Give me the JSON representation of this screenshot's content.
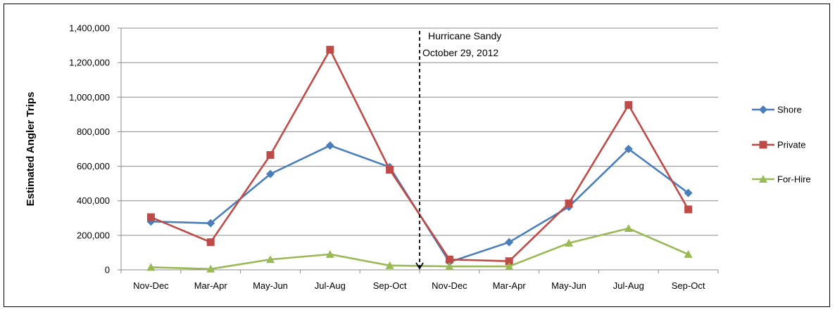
{
  "chart_data": {
    "type": "line",
    "title": "",
    "xlabel": "",
    "ylabel": "Estimated Angler Trips",
    "categories": [
      "Nov-Dec",
      "Mar-Apr",
      "May-Jun",
      "Jul-Aug",
      "Sep-Oct",
      "Nov-Dec",
      "Mar-Apr",
      "May-Jun",
      "Jul-Aug",
      "Sep-Oct"
    ],
    "ylim": [
      0,
      1400000
    ],
    "yticks": [
      0,
      200000,
      400000,
      600000,
      800000,
      1000000,
      1200000,
      1400000
    ],
    "ytick_labels": [
      "0",
      "200,000",
      "400,000",
      "600,000",
      "800,000",
      "1,000,000",
      "1,200,000",
      "1,400,000"
    ],
    "grid": true,
    "legend_position": "right",
    "series": [
      {
        "name": "Shore",
        "color": "#4a7ebb",
        "marker": "diamond",
        "values": [
          280000,
          270000,
          555000,
          720000,
          595000,
          45000,
          160000,
          365000,
          700000,
          445000
        ]
      },
      {
        "name": "Private",
        "color": "#be4b48",
        "marker": "square",
        "values": [
          305000,
          160000,
          665000,
          1275000,
          580000,
          60000,
          50000,
          385000,
          955000,
          350000
        ]
      },
      {
        "name": "For-Hire",
        "color": "#98b954",
        "marker": "triangle",
        "values": [
          15000,
          5000,
          60000,
          90000,
          25000,
          20000,
          20000,
          155000,
          240000,
          90000
        ]
      }
    ],
    "annotation": {
      "lines": [
        "Hurricane Sandy",
        "October 29, 2012"
      ],
      "between_categories": [
        4,
        5
      ]
    }
  }
}
